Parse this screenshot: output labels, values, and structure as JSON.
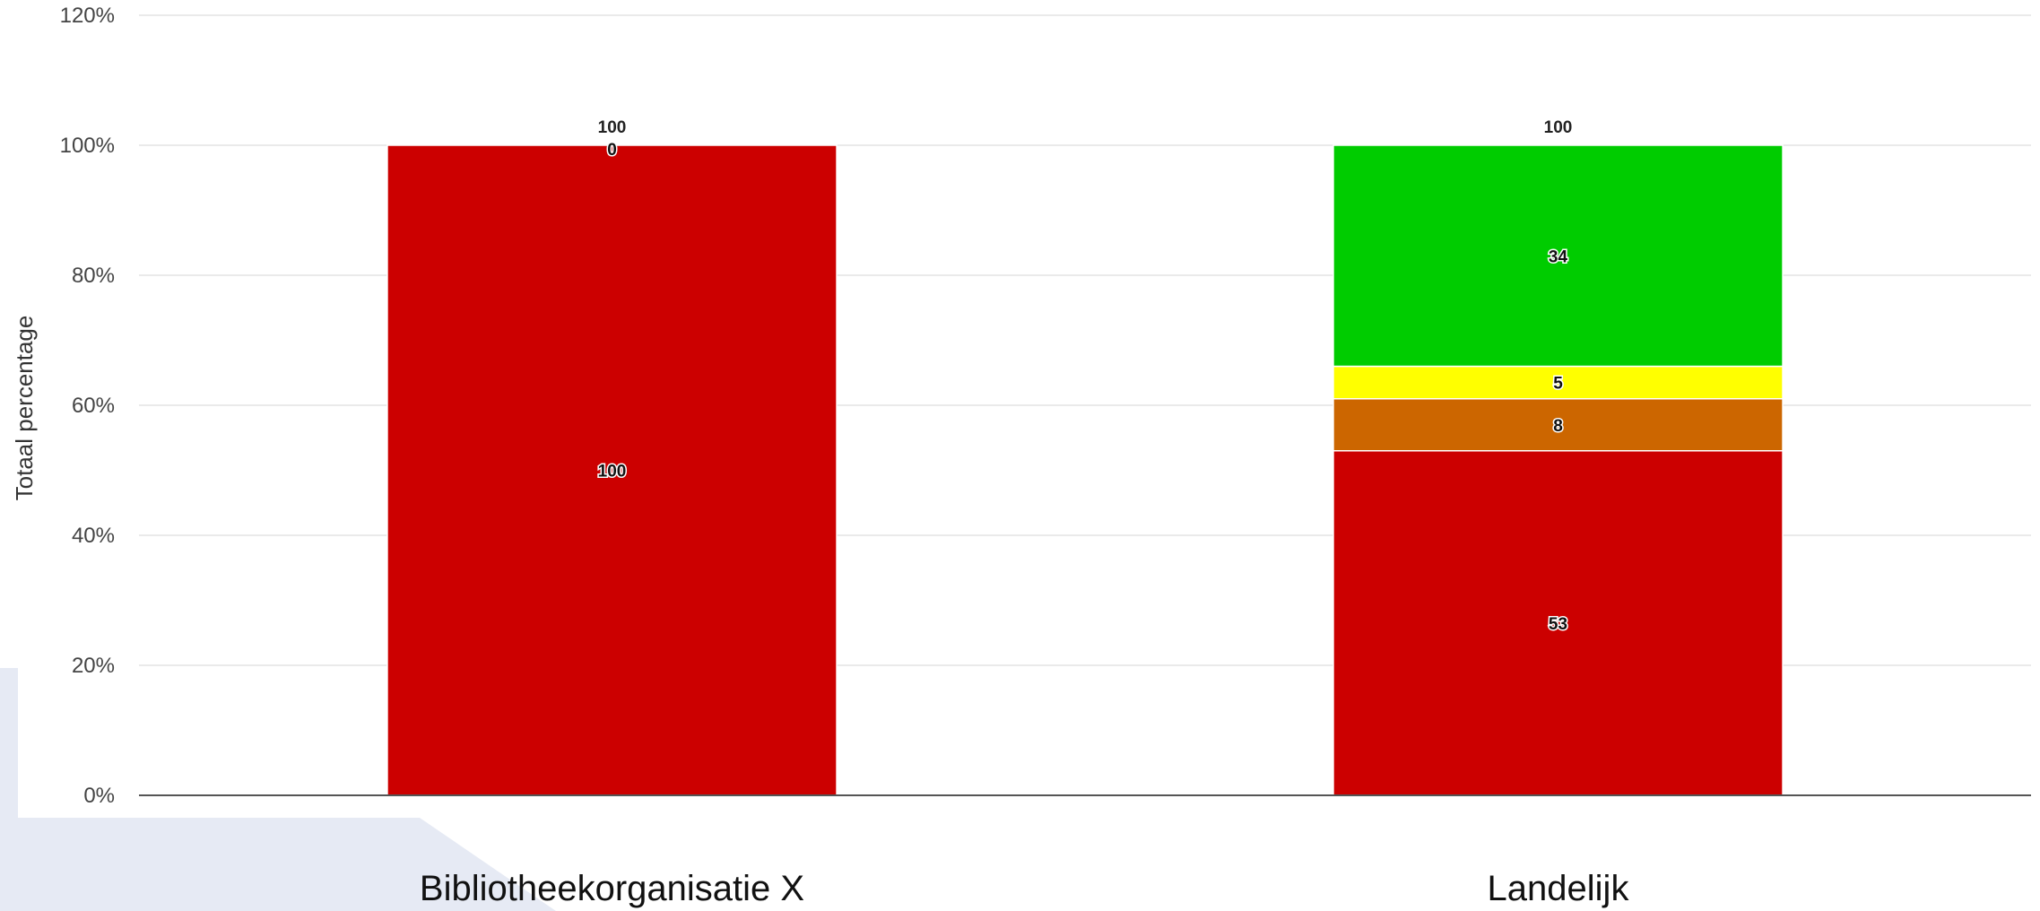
{
  "chart_data": {
    "type": "bar",
    "stacked": true,
    "ylabel": "Totaal percentage",
    "ylim": [
      0,
      120
    ],
    "yticks": [
      "0%",
      "20%",
      "40%",
      "60%",
      "80%",
      "100%",
      "120%"
    ],
    "categories": [
      "Bibliotheekorganisatie X",
      "Landelijk"
    ],
    "series": [
      {
        "color": "#cc0000",
        "values": [
          100,
          53
        ]
      },
      {
        "color": "#cc6600",
        "values": [
          0,
          8
        ]
      },
      {
        "color": "#ffff00",
        "values": [
          0,
          5
        ]
      },
      {
        "color": "#00cc00",
        "values": [
          0,
          34
        ]
      }
    ],
    "data_labels": [
      [
        "100",
        "",
        "",
        "0"
      ],
      [
        "53",
        "8",
        "5",
        "34"
      ]
    ],
    "totals": [
      "100",
      "100"
    ],
    "grid": true,
    "legend": "none",
    "decoration_color": "#e6eaf4"
  }
}
